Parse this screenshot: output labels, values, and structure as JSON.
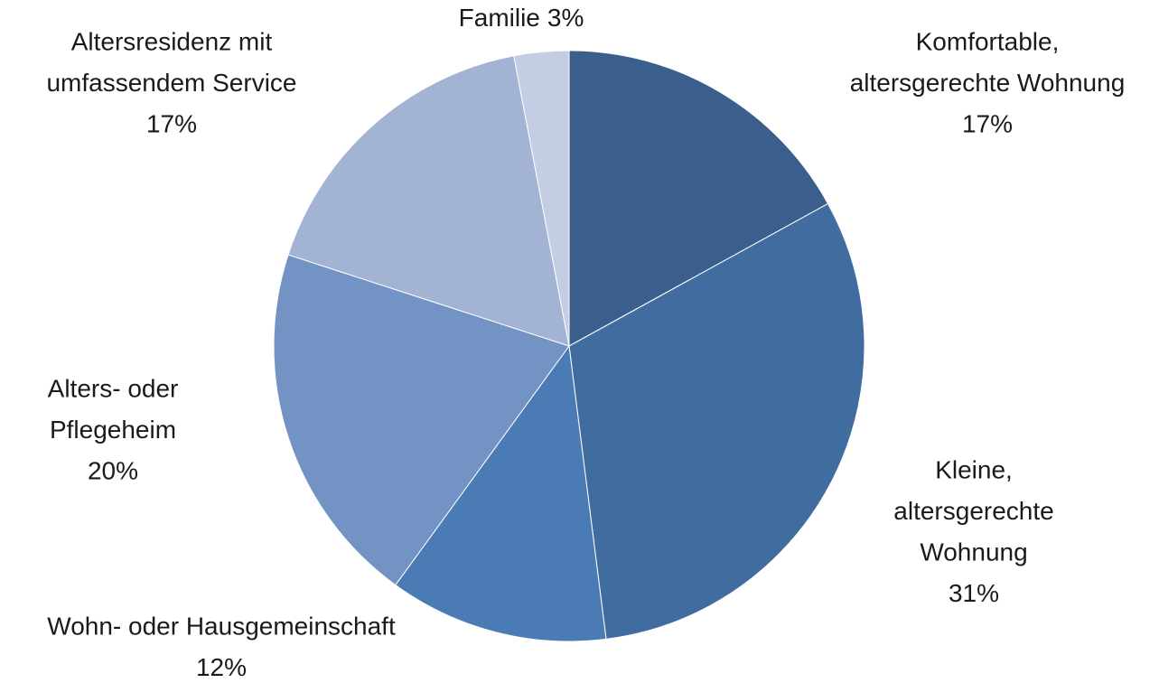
{
  "chart_data": {
    "type": "pie",
    "categories": [
      [
        "Komfortable,",
        "altersgerechte Wohnung"
      ],
      [
        "Kleine,",
        "altersgerechte",
        "Wohnung"
      ],
      [
        "Wohn- oder Hausgemeinschaft"
      ],
      [
        "Alters- oder",
        "Pflegeheim"
      ],
      [
        "Altersresidenz mit",
        "umfassendem Service"
      ],
      [
        "Familie"
      ]
    ],
    "values": [
      17,
      31,
      12,
      20,
      17,
      3
    ],
    "value_labels": [
      "17%",
      "31%",
      "12%",
      "20%",
      "17%",
      "3%"
    ],
    "colors": [
      "#3a5f8c",
      "#416c9f",
      "#4a7bb5",
      "#7393c4",
      "#a2b3d3",
      "#c3cde3"
    ]
  }
}
